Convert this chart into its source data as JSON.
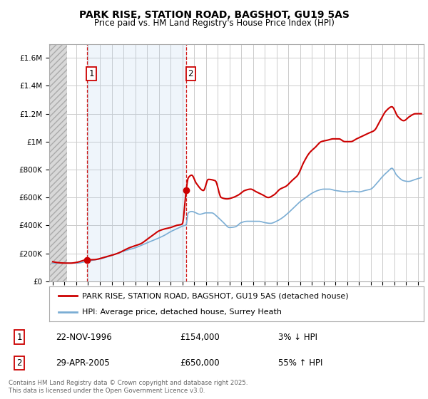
{
  "title": "PARK RISE, STATION ROAD, BAGSHOT, GU19 5AS",
  "subtitle": "Price paid vs. HM Land Registry's House Price Index (HPI)",
  "ylim": [
    0,
    1700000
  ],
  "yticks": [
    0,
    200000,
    400000,
    600000,
    800000,
    1000000,
    1200000,
    1400000,
    1600000
  ],
  "ytick_labels": [
    "£0",
    "£200K",
    "£400K",
    "£600K",
    "£800K",
    "£1M",
    "£1.2M",
    "£1.4M",
    "£1.6M"
  ],
  "xlim_start": 1993.7,
  "xlim_end": 2025.5,
  "hatch_end": 1995.2,
  "red_line_color": "#cc0000",
  "blue_line_color": "#7aadd4",
  "marker_color": "#cc0000",
  "dashed_line_color": "#cc0000",
  "background_color": "#ffffff",
  "grid_color": "#cccccc",
  "sale1_x": 1996.9,
  "sale1_y": 154000,
  "sale1_label": "1",
  "sale1_date": "22-NOV-1996",
  "sale1_price": "£154,000",
  "sale1_hpi": "3% ↓ HPI",
  "sale2_x": 2005.33,
  "sale2_y": 650000,
  "sale2_label": "2",
  "sale2_date": "29-APR-2005",
  "sale2_price": "£650,000",
  "sale2_hpi": "55% ↑ HPI",
  "legend_line1": "PARK RISE, STATION ROAD, BAGSHOT, GU19 5AS (detached house)",
  "legend_line2": "HPI: Average price, detached house, Surrey Heath",
  "footer": "Contains HM Land Registry data © Crown copyright and database right 2025.\nThis data is licensed under the Open Government Licence v3.0.",
  "blue_shaded_alpha": 0.18
}
